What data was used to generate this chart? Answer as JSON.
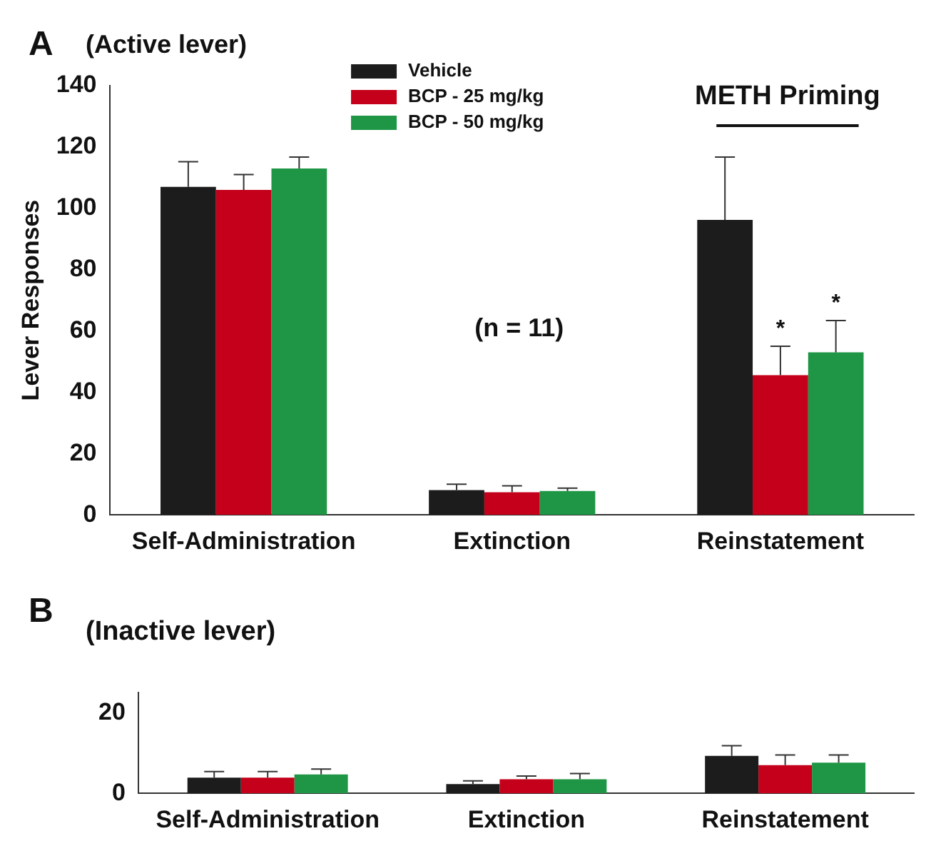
{
  "chart_data": [
    {
      "type": "bar",
      "title": "(Active lever)",
      "ylabel": "Lever Responses",
      "categories": [
        "Self-Administration",
        "Extinction",
        "Reinstatement"
      ],
      "series": [
        {
          "name": "Vehicle",
          "color": "#1c1c1c",
          "values": [
            107,
            8.1,
            96.2
          ],
          "errors": [
            [
              107,
              115.2
            ],
            [
              8.1,
              10
            ],
            [
              96.2,
              116.7
            ]
          ]
        },
        {
          "name": "BCP - 25 mg/kg",
          "color": "#c4001a",
          "values": [
            106,
            7.4,
            45.6
          ],
          "errors": [
            [
              106,
              111
            ],
            [
              7.4,
              9.5
            ],
            [
              45.6,
              55
            ]
          ]
        },
        {
          "name": "BCP - 50 mg/kg",
          "color": "#1e9645",
          "values": [
            113,
            7.8,
            53
          ],
          "errors": [
            [
              113,
              116.7
            ],
            [
              7.8,
              8.7
            ],
            [
              53,
              63.4
            ]
          ]
        }
      ],
      "ylim": [
        0,
        140
      ],
      "yticks": [
        0,
        20,
        40,
        60,
        80,
        100,
        120,
        140
      ],
      "grid": false,
      "legend": "top",
      "annotations": [
        "A",
        "(n = 11)",
        "METH Priming",
        "*",
        "*"
      ]
    },
    {
      "type": "bar",
      "title": "(Inactive lever)",
      "categories": [
        "Self-Administration",
        "Extinction",
        "Reinstatement"
      ],
      "series": [
        {
          "color": "#1c1c1c",
          "values": [
            3.9,
            2.3,
            9.3
          ],
          "errors": [
            [
              3.9,
              5.4
            ],
            [
              2.3,
              3.1
            ],
            [
              9.3,
              11.8
            ]
          ]
        },
        {
          "color": "#c4001a",
          "values": [
            3.9,
            3.5,
            7
          ],
          "errors": [
            [
              3.9,
              5.4
            ],
            [
              3.5,
              4.3
            ],
            [
              7,
              9.5
            ]
          ]
        },
        {
          "color": "#1e9645",
          "values": [
            4.7,
            3.5,
            7.6
          ],
          "errors": [
            [
              4.7,
              6
            ],
            [
              3.5,
              4.9
            ],
            [
              7.6,
              9.5
            ]
          ]
        }
      ],
      "ylim": [
        0,
        25
      ],
      "yticks": [
        0,
        20
      ],
      "grid": false,
      "annotations": [
        "B"
      ]
    }
  ]
}
